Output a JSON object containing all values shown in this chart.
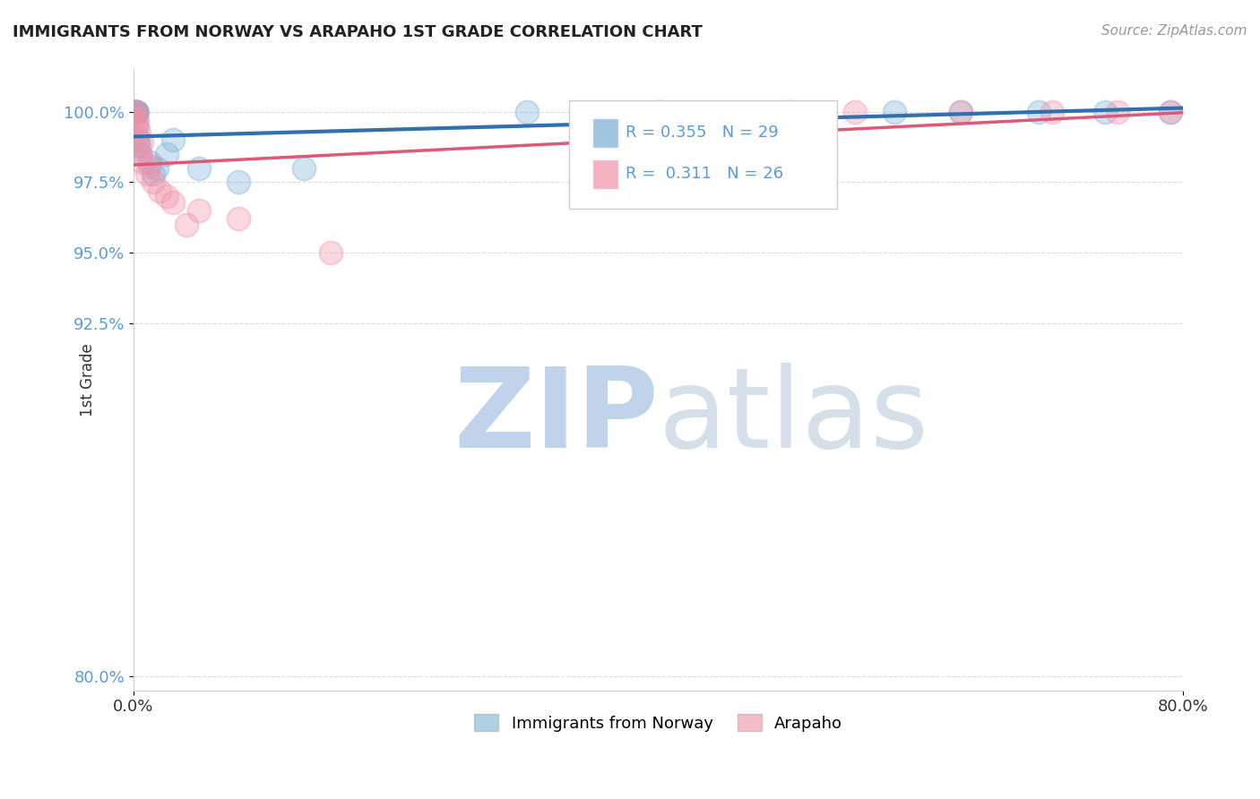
{
  "title": "IMMIGRANTS FROM NORWAY VS ARAPAHO 1ST GRADE CORRELATION CHART",
  "source_text": "Source: ZipAtlas.com",
  "ylabel": "1st Grade",
  "xlim": [
    0.0,
    80.0
  ],
  "ylim": [
    79.5,
    101.5
  ],
  "yticks_right": [
    80.0,
    92.5,
    95.0,
    97.5,
    100.0
  ],
  "ytick_labels_right": [
    "80.0%",
    "92.5%",
    "95.0%",
    "97.5%",
    "100.0%"
  ],
  "xticks": [
    0.0,
    80.0
  ],
  "xtick_labels": [
    "0.0%",
    "80.0%"
  ],
  "legend_entries": [
    {
      "label": "Immigrants from Norway",
      "color": "#aac4e0"
    },
    {
      "label": "Arapaho",
      "color": "#f4a0b0"
    }
  ],
  "R_norway": 0.355,
  "N_norway": 29,
  "R_arapaho": 0.311,
  "N_arapaho": 26,
  "norway_x": [
    0.05,
    0.08,
    0.1,
    0.12,
    0.15,
    0.18,
    0.2,
    0.22,
    0.25,
    0.3,
    0.35,
    0.4,
    0.5,
    1.2,
    1.5,
    1.8,
    2.5,
    3.0,
    5.0,
    8.0,
    13.0,
    30.0,
    40.0,
    50.0,
    58.0,
    63.0,
    69.0,
    74.0,
    79.0
  ],
  "norway_y": [
    100.0,
    100.0,
    100.0,
    100.0,
    100.0,
    100.0,
    100.0,
    100.0,
    100.0,
    99.5,
    99.0,
    98.8,
    98.5,
    98.2,
    97.8,
    98.0,
    98.5,
    99.0,
    98.0,
    97.5,
    98.0,
    100.0,
    100.0,
    100.0,
    100.0,
    100.0,
    100.0,
    100.0,
    100.0
  ],
  "arapaho_x": [
    0.05,
    0.1,
    0.15,
    0.2,
    0.3,
    0.5,
    0.7,
    1.0,
    1.5,
    2.0,
    3.0,
    5.0,
    8.0,
    15.0,
    0.12,
    0.25,
    0.4,
    0.6,
    1.2,
    2.5,
    4.0,
    55.0,
    63.0,
    70.0,
    75.0,
    79.0
  ],
  "arapaho_y": [
    100.0,
    99.8,
    99.5,
    99.2,
    98.8,
    98.5,
    98.2,
    97.8,
    97.5,
    97.2,
    96.8,
    96.5,
    96.2,
    95.0,
    100.0,
    99.7,
    99.3,
    98.9,
    98.1,
    97.0,
    96.0,
    100.0,
    100.0,
    100.0,
    100.0,
    100.0
  ],
  "norway_color": "#7bafd4",
  "arapaho_color": "#f090a8",
  "norway_line_color": "#3070b0",
  "arapaho_line_color": "#e05878",
  "grid_color": "#cccccc",
  "tick_color": "#5b9bd5",
  "background_color": "#ffffff"
}
